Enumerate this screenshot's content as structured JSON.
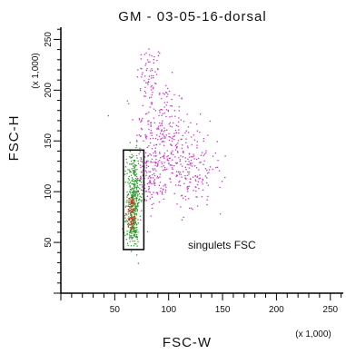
{
  "chart_data": {
    "type": "scatter",
    "title": "GM - 03-05-16-dorsal",
    "xlabel": "FSC-W",
    "ylabel": "FSC-H",
    "x_multiplier": "(x 1,000)",
    "y_multiplier": "(x 1,000)",
    "xlim": [
      0,
      262
    ],
    "ylim": [
      0,
      262
    ],
    "x_ticks": [
      50,
      100,
      150,
      200,
      250
    ],
    "y_ticks": [
      50,
      100,
      150,
      200,
      250
    ],
    "gate": {
      "label": "singulets FSC",
      "x": [
        58,
        77
      ],
      "y": [
        43,
        141
      ]
    },
    "series": [
      {
        "color": "#cc33cc",
        "clusters": [
          {
            "cx": 82,
            "cy": 214,
            "sx": 6,
            "sy": 16,
            "n": 70
          },
          {
            "cx": 92,
            "cy": 165,
            "sx": 12,
            "sy": 22,
            "n": 160
          },
          {
            "cx": 107,
            "cy": 135,
            "sx": 16,
            "sy": 18,
            "n": 190
          },
          {
            "cx": 124,
            "cy": 108,
            "sx": 13,
            "sy": 14,
            "n": 90
          },
          {
            "cx": 83,
            "cy": 115,
            "sx": 6,
            "sy": 14,
            "n": 120
          }
        ]
      },
      {
        "color": "#2e9e2e",
        "clusters": [
          {
            "cx": 67,
            "cy": 96,
            "sx": 3.2,
            "sy": 22,
            "n": 340
          },
          {
            "cx": 66,
            "cy": 62,
            "sx": 3,
            "sy": 8,
            "n": 90
          }
        ]
      },
      {
        "color": "#cc3322",
        "clusters": [
          {
            "cx": 65,
            "cy": 80,
            "sx": 2,
            "sy": 9,
            "n": 85
          }
        ]
      }
    ]
  }
}
